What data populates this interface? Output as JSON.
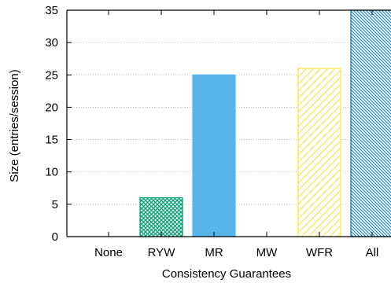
{
  "chart_data": {
    "type": "bar",
    "xlabel": "Consistency Guarantees",
    "ylabel": "Size (entries/session)",
    "ylim": [
      0,
      35
    ],
    "yticks": [
      0,
      5,
      10,
      15,
      20,
      25,
      30,
      35
    ],
    "grid": "horizontal dotted",
    "categories": [
      "None",
      "RYW",
      "MR",
      "MW",
      "WFR",
      "All"
    ],
    "values": [
      0,
      6,
      25,
      0,
      26,
      35
    ],
    "bar_styles": [
      {
        "fill": "none",
        "pattern": "none",
        "color": "#000000"
      },
      {
        "fill": "crosshatch",
        "pattern": "cross",
        "color": "#009e73"
      },
      {
        "fill": "solid",
        "pattern": "none",
        "color": "#56b4e9"
      },
      {
        "fill": "none",
        "pattern": "none",
        "color": "#000000"
      },
      {
        "fill": "hatch",
        "pattern": "diagonal",
        "color": "#f0e442"
      },
      {
        "fill": "hatch",
        "pattern": "dense-diagonal",
        "color": "#0072b2"
      }
    ]
  }
}
